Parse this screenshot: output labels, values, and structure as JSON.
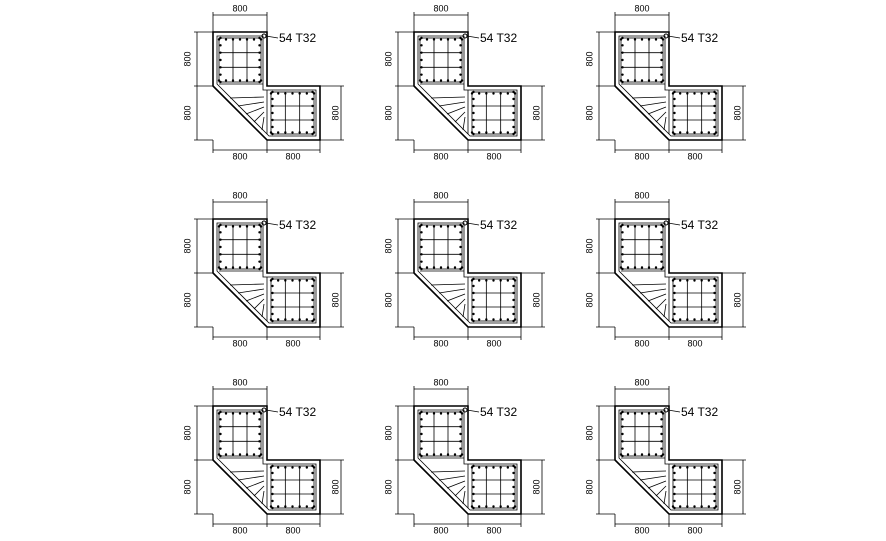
{
  "details": [
    {
      "dims": [
        "800",
        "800",
        "800",
        "800",
        "800",
        "800"
      ],
      "label": "54 T32"
    },
    {
      "dims": [
        "800",
        "800",
        "800",
        "800",
        "800",
        "800"
      ],
      "label": "54 T32"
    },
    {
      "dims": [
        "800",
        "800",
        "800",
        "800",
        "800",
        "800"
      ],
      "label": "54 T32"
    },
    {
      "dims": [
        "800",
        "800",
        "800",
        "800",
        "800",
        "800"
      ],
      "label": "54 T32"
    },
    {
      "dims": [
        "800",
        "800",
        "800",
        "800",
        "800",
        "800"
      ],
      "label": "54 T32"
    },
    {
      "dims": [
        "800",
        "800",
        "800",
        "800",
        "800",
        "800"
      ],
      "label": "54 T32"
    },
    {
      "dims": [
        "800",
        "800",
        "800",
        "800",
        "800",
        "800"
      ],
      "label": "54 T32"
    },
    {
      "dims": [
        "800",
        "800",
        "800",
        "800",
        "800",
        "800"
      ],
      "label": "54 T32"
    },
    {
      "dims": [
        "800",
        "800",
        "800",
        "800",
        "800",
        "800"
      ],
      "label": "54 T32"
    }
  ]
}
